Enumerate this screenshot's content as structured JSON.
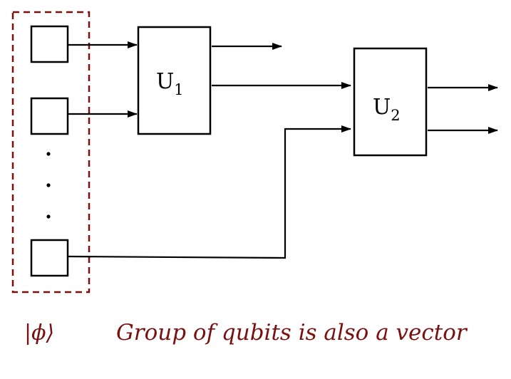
{
  "colors": {
    "accent": "#7a1010",
    "line": "#000000"
  },
  "gates": {
    "u1": {
      "label": "U",
      "subscript": "1"
    },
    "u2": {
      "label": "U",
      "subscript": "2"
    }
  },
  "group": {
    "ket_label": "|ϕ⟩",
    "caption": "Group of qubits is also a vector"
  }
}
